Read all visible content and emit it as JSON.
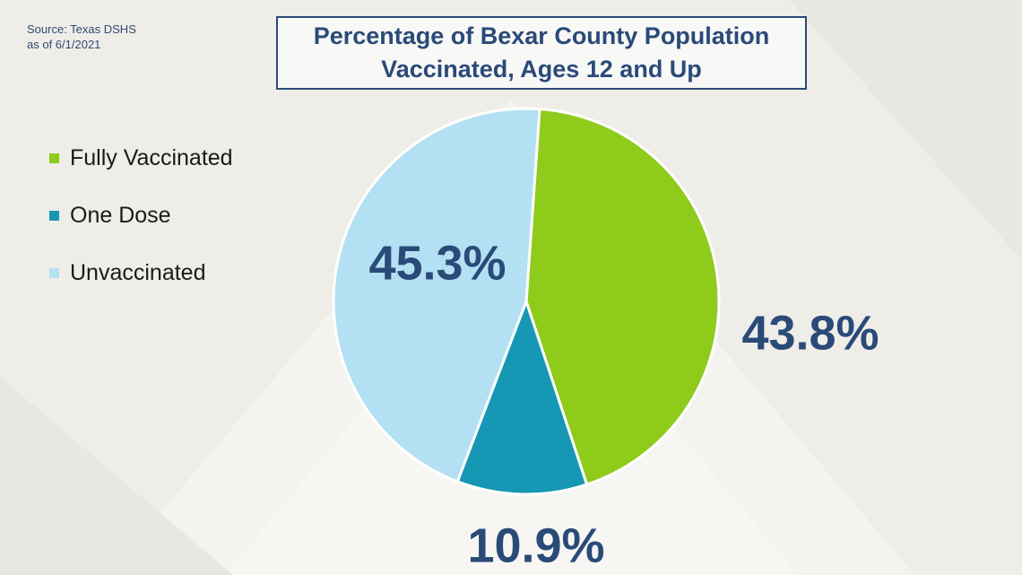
{
  "source": {
    "line1": "Source: Texas DSHS",
    "line2": "as of 6/1/2021"
  },
  "chart_data": {
    "type": "pie",
    "title_line1": "Percentage of Bexar County Population",
    "title_line2": "Vaccinated, Ages 12 and Up",
    "legend_position": "left",
    "slices": [
      {
        "label": "Fully Vaccinated",
        "value": 43.8,
        "display": "43.8%",
        "color": "#8fcb1a"
      },
      {
        "label": "One Dose",
        "value": 10.9,
        "display": "10.9%",
        "color": "#1697b4"
      },
      {
        "label": "Unvaccinated",
        "value": 45.3,
        "display": "45.3%",
        "color": "#b3e0f2"
      }
    ]
  },
  "colors": {
    "accent": "#2a4a78",
    "background": "#efede8"
  }
}
